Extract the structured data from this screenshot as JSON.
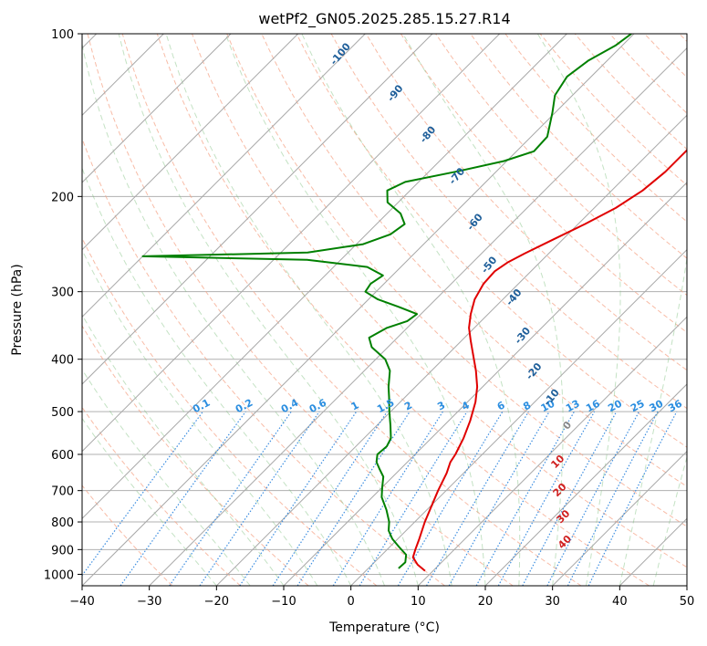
{
  "chart_data": {
    "type": "line",
    "subtype": "skew-t log-p",
    "title": "wetPf2_GN05.2025.285.15.27.R14",
    "xlabel": "Temperature (°C)",
    "ylabel": "Pressure (hPa)",
    "xlim": [
      -40,
      50
    ],
    "ylim": [
      1050,
      100
    ],
    "y_scale": "log",
    "grid": true,
    "x_ticks": [
      -40,
      -30,
      -20,
      -10,
      0,
      10,
      20,
      30,
      40,
      50
    ],
    "y_ticks": [
      1000,
      900,
      800,
      700,
      600,
      500,
      400,
      300,
      200,
      100
    ],
    "series": [
      {
        "color": "#e00000",
        "points": [
          {
            "p": 985,
            "t": 8.8
          },
          {
            "p": 960,
            "t": 6.8
          },
          {
            "p": 930,
            "t": 5.0
          },
          {
            "p": 900,
            "t": 4.2
          },
          {
            "p": 860,
            "t": 3.2
          },
          {
            "p": 800,
            "t": 1.5
          },
          {
            "p": 750,
            "t": 0.2
          },
          {
            "p": 700,
            "t": -1.2
          },
          {
            "p": 650,
            "t": -2.5
          },
          {
            "p": 620,
            "t": -3.6
          },
          {
            "p": 600,
            "t": -4.0
          },
          {
            "p": 560,
            "t": -5.2
          },
          {
            "p": 520,
            "t": -6.8
          },
          {
            "p": 480,
            "t": -8.8
          },
          {
            "p": 450,
            "t": -10.8
          },
          {
            "p": 420,
            "t": -13.4
          },
          {
            "p": 400,
            "t": -15.4
          },
          {
            "p": 370,
            "t": -18.6
          },
          {
            "p": 350,
            "t": -20.8
          },
          {
            "p": 330,
            "t": -22.6
          },
          {
            "p": 310,
            "t": -24.2
          },
          {
            "p": 290,
            "t": -25.2
          },
          {
            "p": 275,
            "t": -25.4
          },
          {
            "p": 265,
            "t": -24.8
          },
          {
            "p": 255,
            "t": -23.6
          },
          {
            "p": 240,
            "t": -21.4
          },
          {
            "p": 225,
            "t": -19.0
          },
          {
            "p": 210,
            "t": -16.8
          },
          {
            "p": 195,
            "t": -15.4
          },
          {
            "p": 180,
            "t": -14.8
          },
          {
            "p": 165,
            "t": -14.8
          },
          {
            "p": 150,
            "t": -15.0
          },
          {
            "p": 135,
            "t": -15.4
          },
          {
            "p": 125,
            "t": -16.2
          },
          {
            "p": 115,
            "t": -18.0
          },
          {
            "p": 108,
            "t": -19.6
          },
          {
            "p": 100,
            "t": -20.8
          }
        ]
      },
      {
        "color": "#008000",
        "points": [
          {
            "p": 975,
            "t": 4.5
          },
          {
            "p": 950,
            "t": 4.6
          },
          {
            "p": 920,
            "t": 3.6
          },
          {
            "p": 890,
            "t": 1.4
          },
          {
            "p": 860,
            "t": -0.8
          },
          {
            "p": 830,
            "t": -2.6
          },
          {
            "p": 800,
            "t": -3.8
          },
          {
            "p": 760,
            "t": -6.0
          },
          {
            "p": 720,
            "t": -8.6
          },
          {
            "p": 690,
            "t": -10.0
          },
          {
            "p": 660,
            "t": -11.4
          },
          {
            "p": 640,
            "t": -13.0
          },
          {
            "p": 620,
            "t": -14.6
          },
          {
            "p": 600,
            "t": -15.6
          },
          {
            "p": 580,
            "t": -15.4
          },
          {
            "p": 560,
            "t": -16.0
          },
          {
            "p": 530,
            "t": -18.0
          },
          {
            "p": 500,
            "t": -20.2
          },
          {
            "p": 470,
            "t": -22.4
          },
          {
            "p": 450,
            "t": -24.0
          },
          {
            "p": 420,
            "t": -26.2
          },
          {
            "p": 400,
            "t": -28.6
          },
          {
            "p": 380,
            "t": -32.4
          },
          {
            "p": 365,
            "t": -34.2
          },
          {
            "p": 350,
            "t": -33.0
          },
          {
            "p": 340,
            "t": -31.0
          },
          {
            "p": 330,
            "t": -30.6
          },
          {
            "p": 320,
            "t": -34.4
          },
          {
            "p": 310,
            "t": -38.6
          },
          {
            "p": 300,
            "t": -41.6
          },
          {
            "p": 290,
            "t": -42.0
          },
          {
            "p": 280,
            "t": -41.4
          },
          {
            "p": 270,
            "t": -45.0
          },
          {
            "p": 262,
            "t": -55.0
          },
          {
            "p": 258,
            "t": -80.0
          },
          {
            "p": 254,
            "t": -56.0
          },
          {
            "p": 245,
            "t": -49.0
          },
          {
            "p": 235,
            "t": -46.4
          },
          {
            "p": 225,
            "t": -45.8
          },
          {
            "p": 215,
            "t": -48.0
          },
          {
            "p": 205,
            "t": -51.6
          },
          {
            "p": 195,
            "t": -53.4
          },
          {
            "p": 188,
            "t": -52.0
          },
          {
            "p": 180,
            "t": -46.0
          },
          {
            "p": 172,
            "t": -40.4
          },
          {
            "p": 165,
            "t": -37.4
          },
          {
            "p": 155,
            "t": -37.6
          },
          {
            "p": 140,
            "t": -40.4
          },
          {
            "p": 130,
            "t": -42.6
          },
          {
            "p": 120,
            "t": -43.6
          },
          {
            "p": 112,
            "t": -42.8
          },
          {
            "p": 105,
            "t": -41.0
          },
          {
            "p": 100,
            "t": -40.4
          }
        ]
      }
    ],
    "dry_adiabat_labels": [
      {
        "text": "-100",
        "p": 110,
        "t": -80.0
      },
      {
        "text": "-90",
        "p": 130,
        "t": -66.0
      },
      {
        "text": "-80",
        "p": 155,
        "t": -55.0
      },
      {
        "text": "-70",
        "p": 185,
        "t": -44.5
      },
      {
        "text": "-60",
        "p": 225,
        "t": -35.0
      },
      {
        "text": "-50",
        "p": 270,
        "t": -26.5
      },
      {
        "text": "-40",
        "p": 310,
        "t": -18.0
      },
      {
        "text": "-30",
        "p": 365,
        "t": -11.0
      },
      {
        "text": "-20",
        "p": 425,
        "t": -4.0
      },
      {
        "text": "-10",
        "p": 475,
        "t": 2.5
      },
      {
        "text": "0",
        "p": 535,
        "t": 9.0
      }
    ],
    "moist_adiabat_labels": [
      {
        "text": "10",
        "p": 625,
        "t": 13.0
      },
      {
        "text": "20",
        "p": 705,
        "t": 17.5
      },
      {
        "text": "30",
        "p": 790,
        "t": 22.0
      },
      {
        "text": "40",
        "p": 880,
        "t": 26.0
      }
    ],
    "mixing_ratio_labels": [
      "0.1",
      "0.2",
      "0.4",
      "0.6",
      "1",
      "1.5",
      "2",
      "3",
      "4",
      "6",
      "8",
      "10",
      "13",
      "16",
      "20",
      "25",
      "30",
      "36"
    ]
  }
}
